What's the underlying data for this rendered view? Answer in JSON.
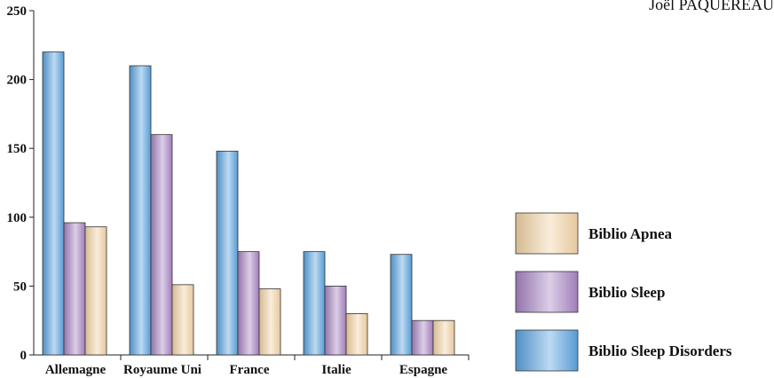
{
  "author": "Joël PAQUEREAU",
  "colors": {
    "Biblio Sleep Disorders": "#5aa3df",
    "Biblio Sleep": "#a784c2",
    "Biblio Apnea": "#f2d3a5"
  },
  "chart_data": {
    "type": "bar",
    "categories": [
      "Allemagne",
      "Royaume Uni",
      "France",
      "Italie",
      "Espagne"
    ],
    "series": [
      {
        "name": "Biblio Sleep Disorders",
        "values": [
          220,
          210,
          148,
          75,
          73
        ]
      },
      {
        "name": "Biblio Sleep",
        "values": [
          96,
          160,
          75,
          50,
          25
        ]
      },
      {
        "name": "Biblio Apnea",
        "values": [
          93,
          51,
          48,
          30,
          25
        ]
      }
    ],
    "yticks": [
      "0",
      "50",
      "100",
      "150",
      "200",
      "250"
    ],
    "ylim": [
      0,
      250
    ],
    "title": "",
    "xlabel": "",
    "ylabel": "",
    "legend_position": "right",
    "legend_order": [
      "Biblio Apnea",
      "Biblio Sleep",
      "Biblio Sleep Disorders"
    ],
    "grid": false
  }
}
